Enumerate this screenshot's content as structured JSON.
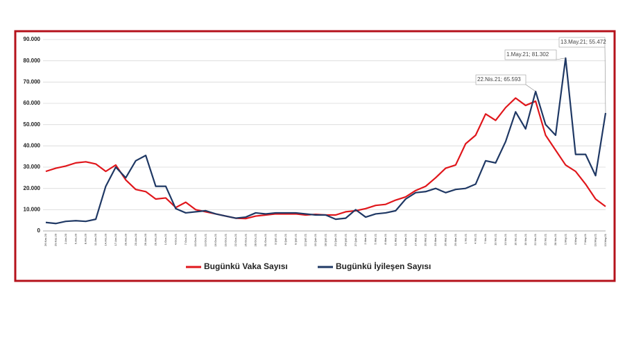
{
  "chart_data": {
    "type": "line",
    "categories": [
      "26.Kas.20",
      "29.Kas.20",
      "2.Ara.20",
      "5.Ara.20",
      "8.Ara.20",
      "11.Ara.20",
      "14.Ara.20",
      "17.Ara.20",
      "20.Ara.20",
      "23.Ara.20",
      "26.Ara.20",
      "29.Ara.20",
      "1.Oca.21",
      "4.Oca.21",
      "7.Oca.21",
      "10.Oca.21",
      "13.Oca.21",
      "16.Oca.21",
      "19.Oca.21",
      "22.Oca.21",
      "25.Oca.21",
      "28.Oca.21",
      "31.Oca.21",
      "3.Şub.21",
      "6.Şub.21",
      "9.Şub.21",
      "12.Şub.21",
      "15.Şub.21",
      "18.Şub.21",
      "21.Şub.21",
      "24.Şub.21",
      "27.Şub.21",
      "2.Mar.21",
      "5.Mar.21",
      "8.Mar.21",
      "11.Mar.21",
      "14.Mar.21",
      "17.Mar.21",
      "20.Mar.21",
      "23.Mar.21",
      "26.Mar.21",
      "29.Mar.21",
      "1.Nis.21",
      "4.Nis.21",
      "7.Nis.21",
      "10.Nis.21",
      "13.Nis.21",
      "16.Nis.21",
      "19.Nis.21",
      "22.Nis.21",
      "25.Nis.21",
      "28.Nis.21",
      "1.May.21",
      "4.May.21",
      "7.May.21",
      "10.May.21",
      "13.May.21"
    ],
    "series": [
      {
        "name": "Bugünkü Vaka Sayısı",
        "color": "#e0161b",
        "values": [
          28000,
          29500,
          30500,
          32000,
          32500,
          31500,
          28000,
          31000,
          24000,
          19500,
          18500,
          15000,
          15500,
          11000,
          13500,
          10000,
          9000,
          8000,
          7000,
          6000,
          5800,
          7000,
          7500,
          8000,
          8000,
          8000,
          7500,
          7800,
          7500,
          7500,
          9000,
          9500,
          10500,
          12000,
          12500,
          14500,
          16000,
          19000,
          21000,
          25000,
          29500,
          31000,
          41000,
          45000,
          55000,
          52000,
          58000,
          62500,
          59000,
          61000,
          45000,
          38000,
          31000,
          28000,
          22000,
          15000,
          11500
        ]
      },
      {
        "name": "Bugünkü İyileşen Sayısı",
        "color": "#1f3864",
        "values": [
          4000,
          3500,
          4500,
          4800,
          4500,
          5500,
          21000,
          30000,
          25000,
          33000,
          35500,
          21000,
          21000,
          10500,
          8500,
          9000,
          9500,
          8000,
          7000,
          6000,
          6500,
          8500,
          8000,
          8500,
          8500,
          8500,
          8000,
          7500,
          7500,
          5500,
          6000,
          10000,
          6500,
          8000,
          8500,
          9500,
          15000,
          18000,
          18500,
          20000,
          18000,
          19500,
          20000,
          22000,
          33000,
          32000,
          42000,
          56000,
          48000,
          65593,
          50000,
          45000,
          81302,
          36000,
          36000,
          26000,
          55472
        ]
      }
    ],
    "ylim": [
      0,
      90000
    ],
    "yticks": [
      0,
      {
        "value": 10000,
        "label": "10.000"
      },
      {
        "value": 20000,
        "label": "20.000"
      },
      {
        "value": 30000,
        "label": "30.000"
      },
      {
        "value": 40000,
        "label": "40.000"
      },
      {
        "value": 50000,
        "label": "50.000"
      },
      {
        "value": 60000,
        "label": "60.000"
      },
      {
        "value": 70000,
        "label": "70.000"
      },
      {
        "value": 80000,
        "label": "80.000"
      },
      {
        "value": 90000,
        "label": "90.000"
      }
    ],
    "grid": true,
    "annotations": [
      {
        "label": "22.Nis.21; 65.593",
        "series": 1,
        "index": 49
      },
      {
        "label": "1.May.21; 81.302",
        "series": 1,
        "index": 52
      },
      {
        "label": "13.May.21; 55.472",
        "series": 1,
        "index": 56
      }
    ]
  }
}
